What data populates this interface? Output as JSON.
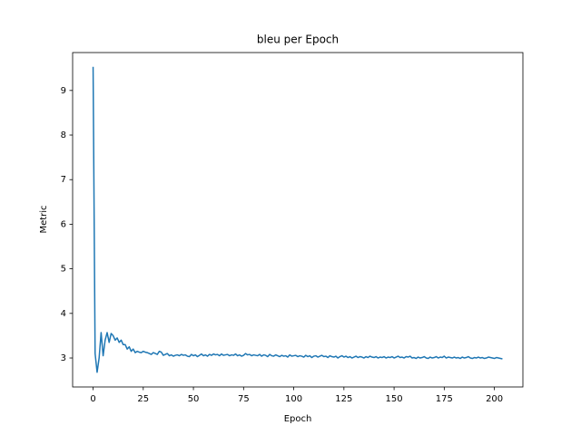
{
  "chart_data": {
    "type": "line",
    "title": "bleu per Epoch",
    "x_label": "Epoch",
    "y_label": "Metric",
    "color": "#1f77b4",
    "x": [
      0,
      1,
      2,
      3,
      4,
      5,
      6,
      7,
      8,
      9,
      10,
      11,
      12,
      13,
      14,
      15,
      16,
      17,
      18,
      19,
      20,
      21,
      22,
      23,
      24,
      25,
      26,
      27,
      28,
      29,
      30,
      31,
      32,
      33,
      34,
      35,
      36,
      37,
      38,
      39,
      40,
      41,
      42,
      43,
      44,
      45,
      46,
      47,
      48,
      49,
      50,
      51,
      52,
      53,
      54,
      55,
      56,
      57,
      58,
      59,
      60,
      61,
      62,
      63,
      64,
      65,
      66,
      67,
      68,
      69,
      70,
      71,
      72,
      73,
      74,
      75,
      76,
      77,
      78,
      79,
      80,
      81,
      82,
      83,
      84,
      85,
      86,
      87,
      88,
      89,
      90,
      91,
      92,
      93,
      94,
      95,
      96,
      97,
      98,
      99,
      100,
      101,
      102,
      103,
      104,
      105,
      106,
      107,
      108,
      109,
      110,
      111,
      112,
      113,
      114,
      115,
      116,
      117,
      118,
      119,
      120,
      121,
      122,
      123,
      124,
      125,
      126,
      127,
      128,
      129,
      130,
      131,
      132,
      133,
      134,
      135,
      136,
      137,
      138,
      139,
      140,
      141,
      142,
      143,
      144,
      145,
      146,
      147,
      148,
      149,
      150,
      151,
      152,
      153,
      154,
      155,
      156,
      157,
      158,
      159,
      160,
      161,
      162,
      163,
      164,
      165,
      166,
      167,
      168,
      169,
      170,
      171,
      172,
      173,
      174,
      175,
      176,
      177,
      178,
      179,
      180,
      181,
      182,
      183,
      184,
      185,
      186,
      187,
      188,
      189,
      190,
      191,
      192,
      193,
      194,
      195,
      196,
      197,
      198,
      199,
      200,
      201,
      202,
      203,
      204
    ],
    "values": [
      9.53,
      3.1,
      2.68,
      3.0,
      3.57,
      3.05,
      3.4,
      3.57,
      3.35,
      3.55,
      3.5,
      3.4,
      3.45,
      3.35,
      3.4,
      3.3,
      3.3,
      3.2,
      3.25,
      3.15,
      3.2,
      3.12,
      3.15,
      3.13,
      3.12,
      3.15,
      3.13,
      3.12,
      3.1,
      3.08,
      3.12,
      3.1,
      3.08,
      3.15,
      3.13,
      3.06,
      3.08,
      3.1,
      3.05,
      3.07,
      3.04,
      3.06,
      3.07,
      3.05,
      3.08,
      3.06,
      3.07,
      3.04,
      3.03,
      3.08,
      3.05,
      3.07,
      3.03,
      3.06,
      3.09,
      3.05,
      3.07,
      3.04,
      3.08,
      3.06,
      3.09,
      3.07,
      3.08,
      3.05,
      3.09,
      3.06,
      3.07,
      3.08,
      3.05,
      3.07,
      3.06,
      3.09,
      3.05,
      3.07,
      3.04,
      3.06,
      3.1,
      3.07,
      3.08,
      3.05,
      3.07,
      3.06,
      3.05,
      3.08,
      3.04,
      3.07,
      3.06,
      3.03,
      3.08,
      3.05,
      3.04,
      3.07,
      3.05,
      3.03,
      3.06,
      3.04,
      3.05,
      3.02,
      3.07,
      3.04,
      3.05,
      3.06,
      3.03,
      3.05,
      3.04,
      3.02,
      3.06,
      3.03,
      3.05,
      3.01,
      3.04,
      3.05,
      3.02,
      3.04,
      3.06,
      3.03,
      3.04,
      3.01,
      3.05,
      3.03,
      3.02,
      3.04,
      3.0,
      3.03,
      3.05,
      3.02,
      3.04,
      3.01,
      3.03,
      3.0,
      3.02,
      3.04,
      3.01,
      3.03,
      3.02,
      3.0,
      3.03,
      3.01,
      3.04,
      3.02,
      3.01,
      3.03,
      3.0,
      3.02,
      3.01,
      3.03,
      3.0,
      3.02,
      3.01,
      3.03,
      3.0,
      3.02,
      3.04,
      3.01,
      3.02,
      3.0,
      3.03,
      3.02,
      3.04,
      3.0,
      3.01,
      2.99,
      3.02,
      3.0,
      3.01,
      3.03,
      3.0,
      2.99,
      3.02,
      3.0,
      3.01,
      3.03,
      3.0,
      3.02,
      3.01,
      3.04,
      3.0,
      3.02,
      3.01,
      3.0,
      3.02,
      3.0,
      3.01,
      2.99,
      3.02,
      3.0,
      3.01,
      3.03,
      3.0,
      2.99,
      3.01,
      3.0,
      3.02,
      3.0,
      3.01,
      2.99,
      3.0,
      3.02,
      3.01,
      3.0,
      2.99,
      3.01,
      3.0,
      2.99,
      2.98
    ],
    "xlim": [
      -10.2,
      214.2
    ],
    "ylim": [
      2.35,
      9.85
    ],
    "xticks": [
      0,
      25,
      50,
      75,
      100,
      125,
      150,
      175,
      200
    ],
    "yticks": [
      3,
      4,
      5,
      6,
      7,
      8,
      9
    ]
  }
}
